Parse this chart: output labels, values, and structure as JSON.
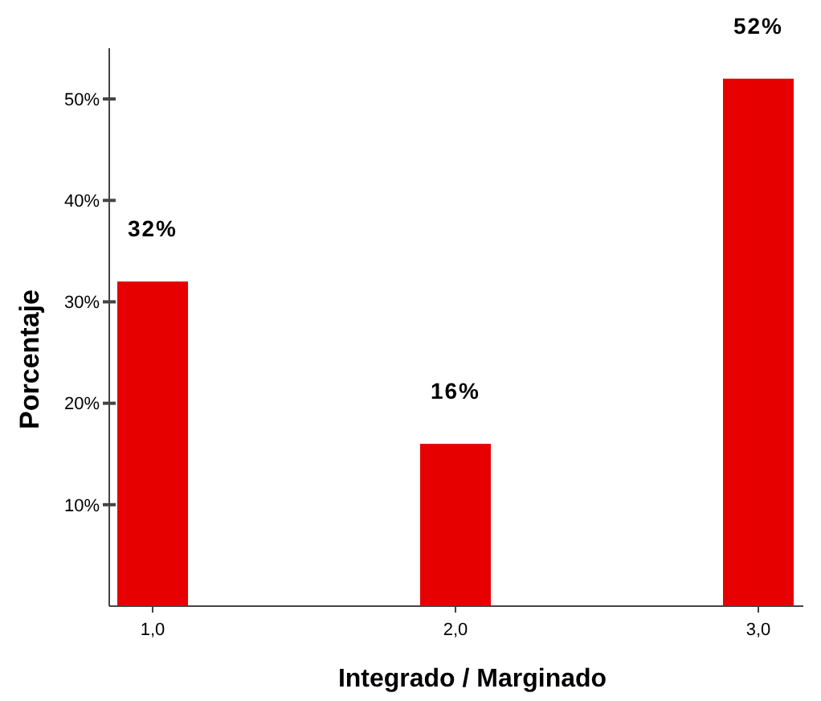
{
  "chart_data": {
    "type": "bar",
    "xlabel": "Integrado / Marginado",
    "ylabel": "Porcentaje",
    "categories": [
      "1,0",
      "2,0",
      "3,0"
    ],
    "values": [
      32,
      16,
      52
    ],
    "value_labels": [
      "32%",
      "16%",
      "52%"
    ],
    "color": "#e60000",
    "ylim": [
      0,
      55
    ],
    "yticks": [
      {
        "value": 10,
        "label": "10%"
      },
      {
        "value": 20,
        "label": "20%"
      },
      {
        "value": 30,
        "label": "30%"
      },
      {
        "value": 40,
        "label": "40%"
      },
      {
        "value": 50,
        "label": "50%"
      }
    ],
    "grid": false
  }
}
